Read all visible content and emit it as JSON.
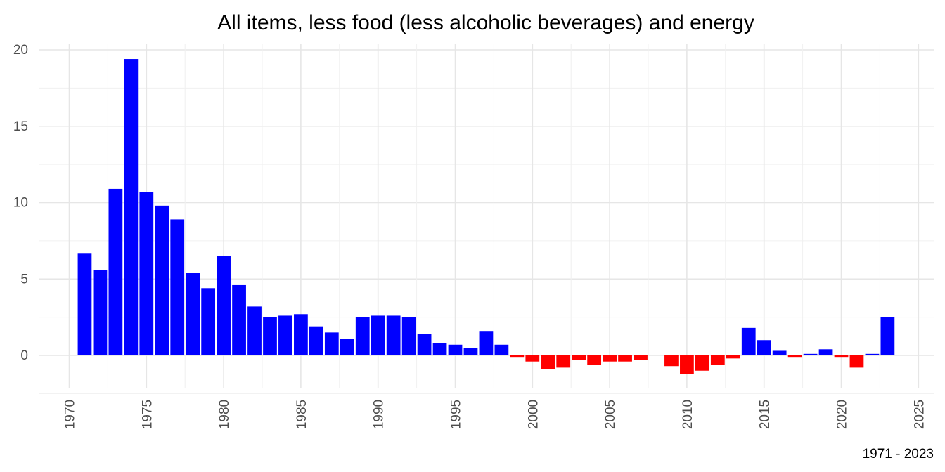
{
  "chart_data": {
    "type": "bar",
    "title": "All items, less food (less alcoholic beverages) and energy",
    "caption": "1971 - 2023",
    "xlabel": "",
    "ylabel": "",
    "xlim": [
      1970,
      2025
    ],
    "ylim": [
      -2.5,
      20
    ],
    "x_ticks": [
      "1970",
      "1975",
      "1980",
      "1985",
      "1990",
      "1995",
      "2000",
      "2005",
      "2010",
      "2015",
      "2020",
      "2025"
    ],
    "y_ticks": [
      "0",
      "5",
      "10",
      "15",
      "20"
    ],
    "grid": true,
    "colors": {
      "positive": "#0000ff",
      "negative": "#ff0000"
    },
    "x": [
      1971,
      1972,
      1973,
      1974,
      1975,
      1976,
      1977,
      1978,
      1979,
      1980,
      1981,
      1982,
      1983,
      1984,
      1985,
      1986,
      1987,
      1988,
      1989,
      1990,
      1991,
      1992,
      1993,
      1994,
      1995,
      1996,
      1997,
      1998,
      1999,
      2000,
      2001,
      2002,
      2003,
      2004,
      2005,
      2006,
      2007,
      2008,
      2009,
      2010,
      2011,
      2012,
      2013,
      2014,
      2015,
      2016,
      2017,
      2018,
      2019,
      2020,
      2021,
      2022,
      2023
    ],
    "values": [
      6.7,
      5.6,
      10.9,
      19.4,
      10.7,
      9.8,
      8.9,
      5.4,
      4.4,
      6.5,
      4.6,
      3.2,
      2.5,
      2.6,
      2.7,
      1.9,
      1.5,
      1.1,
      2.5,
      2.6,
      2.6,
      2.5,
      1.4,
      0.8,
      0.7,
      0.5,
      1.6,
      0.7,
      -0.1,
      -0.4,
      -0.9,
      -0.8,
      -0.3,
      -0.6,
      -0.4,
      -0.4,
      -0.3,
      0.0,
      -0.7,
      -1.2,
      -1.0,
      -0.6,
      -0.2,
      1.8,
      1.0,
      0.3,
      -0.1,
      0.1,
      0.4,
      -0.1,
      -0.8,
      0.1,
      2.5
    ]
  }
}
